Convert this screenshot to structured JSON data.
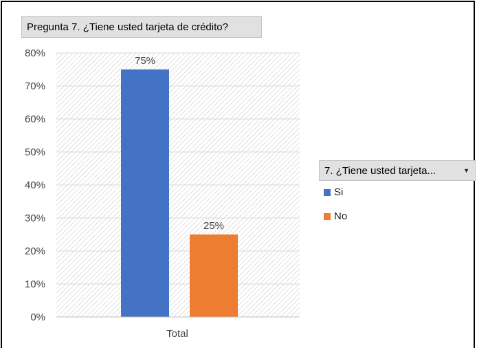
{
  "title": "Pregunta 7. ¿Tiene usted tarjeta de crédito?",
  "legend": {
    "header": "7. ¿Tiene usted tarjeta...",
    "dropdown_icon": "chevron-down-icon"
  },
  "colors": {
    "Si": "#4472c4",
    "No": "#ed7d31",
    "plot_hatch": "#b4b4b4"
  },
  "chart_data": {
    "type": "bar",
    "categories": [
      "Total"
    ],
    "series": [
      {
        "name": "Si",
        "values": [
          75
        ],
        "label": "75%"
      },
      {
        "name": "No",
        "values": [
          25
        ],
        "label": "25%"
      }
    ],
    "ylim": [
      0,
      80
    ],
    "yticks": [
      "0%",
      "10%",
      "20%",
      "30%",
      "40%",
      "50%",
      "60%",
      "70%",
      "80%"
    ],
    "grid": true,
    "legend_position": "right"
  }
}
